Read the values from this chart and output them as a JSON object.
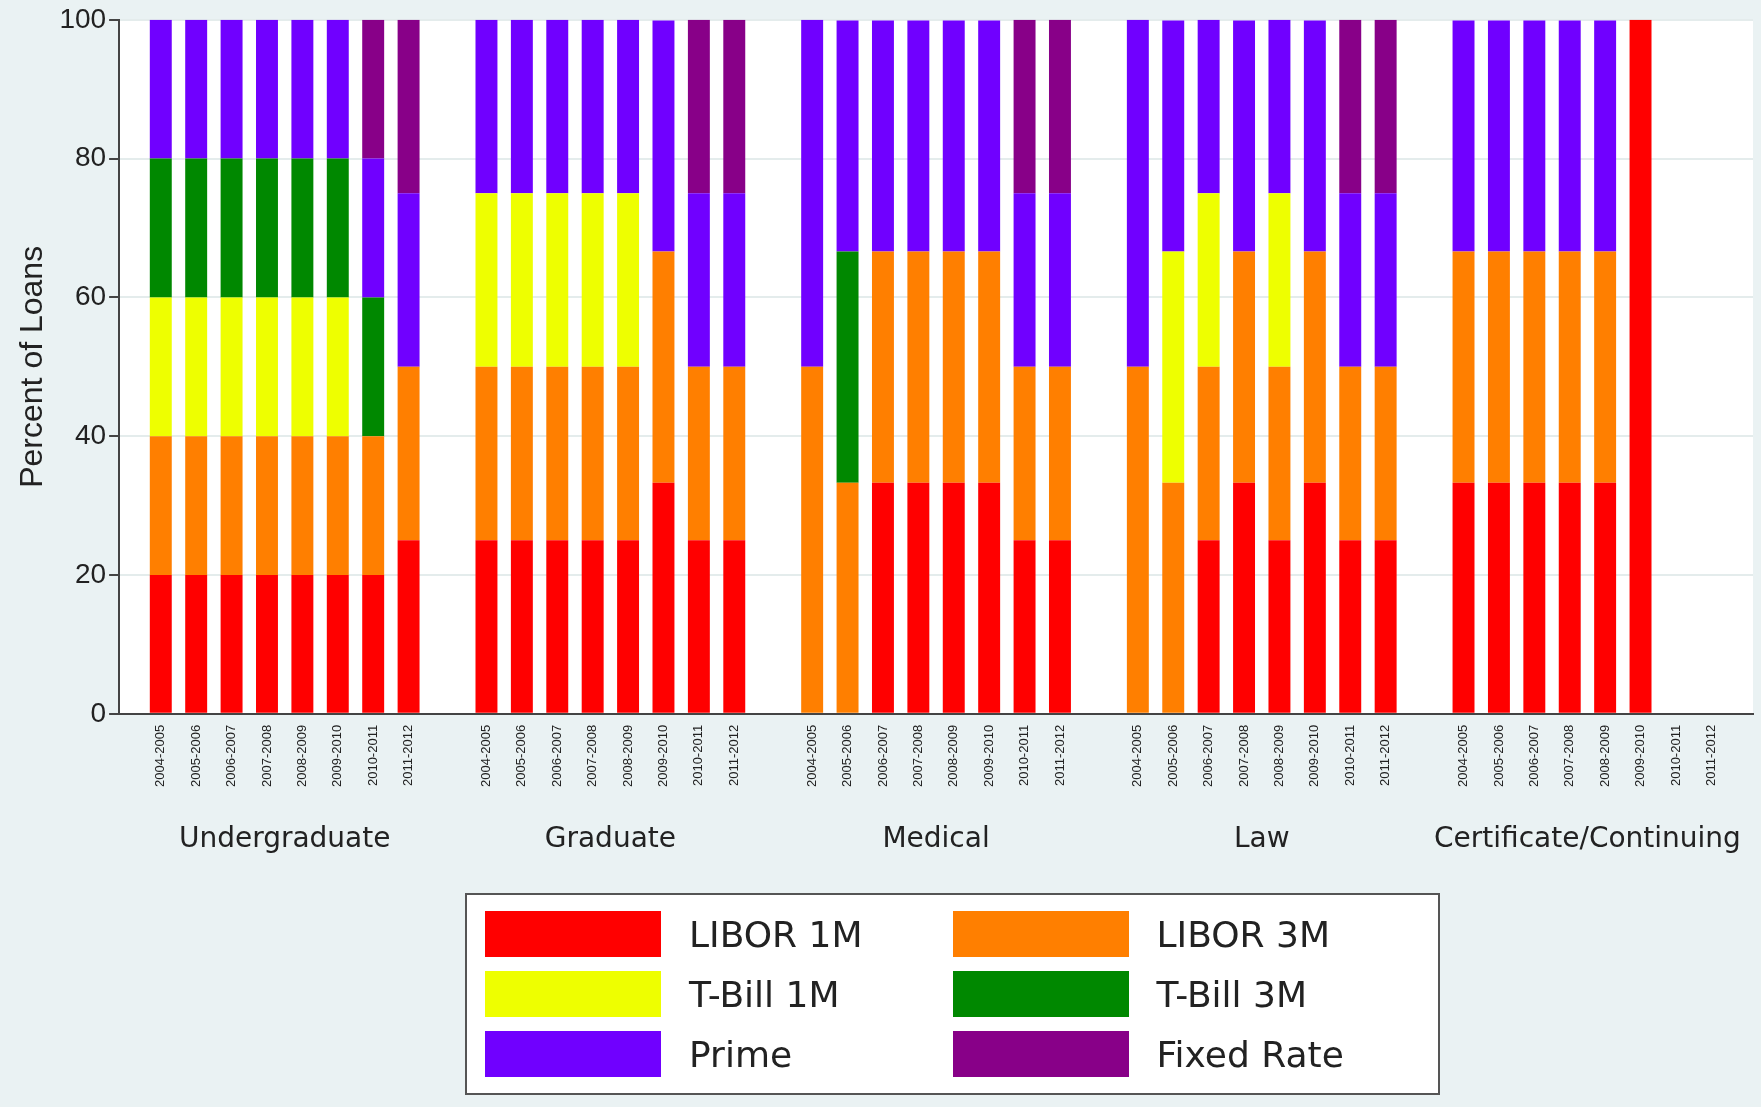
{
  "chart_data": {
    "type": "bar",
    "stacked": true,
    "ylabel": "Percent of Loans",
    "categories": [
      "2004-2005",
      "2005-2006",
      "2006-2007",
      "2007-2008",
      "2008-2009",
      "2009-2010",
      "2010-2011",
      "2011-2012",
      "2004-2005",
      "2005-2006",
      "2006-2007",
      "2007-2008",
      "2008-2009",
      "2009-2010",
      "2010-2011",
      "2011-2012",
      "2004-2005",
      "2005-2006",
      "2006-2007",
      "2007-2008",
      "2008-2009",
      "2009-2010",
      "2010-2011",
      "2011-2012",
      "2004-2005",
      "2005-2006",
      "2006-2007",
      "2007-2008",
      "2008-2009",
      "2009-2010",
      "2010-2011",
      "2011-2012",
      "2004-2005",
      "2005-2006",
      "2006-2007",
      "2007-2008",
      "2008-2009",
      "2009-2010",
      "2010-2011",
      "2011-2012"
    ],
    "annotations": [
      "Undergraduate",
      "Graduate",
      "Medical",
      "Law",
      "Certificate/Continuing"
    ],
    "series": [
      {
        "name": "LIBOR 1M",
        "color": "#ff0000",
        "values": [
          20,
          20,
          20,
          20,
          20,
          20,
          20,
          25,
          25,
          25,
          25,
          25,
          25,
          33.3,
          25,
          25,
          0,
          0,
          33.3,
          33.3,
          33.3,
          33.3,
          25,
          25,
          0,
          0,
          25,
          33.3,
          25,
          33.3,
          25,
          25,
          33.3,
          33.3,
          33.3,
          33.3,
          33.3,
          100,
          null,
          null
        ]
      },
      {
        "name": "LIBOR 3M",
        "color": "#ff7f00",
        "values": [
          20,
          20,
          20,
          20,
          20,
          20,
          20,
          25,
          25,
          25,
          25,
          25,
          25,
          33.3,
          25,
          25,
          50,
          33.3,
          33.3,
          33.3,
          33.3,
          33.3,
          25,
          25,
          50,
          33.3,
          25,
          33.3,
          25,
          33.3,
          25,
          25,
          33.3,
          33.3,
          33.3,
          33.3,
          33.3,
          0,
          null,
          null
        ]
      },
      {
        "name": "T-Bill 1M",
        "color": "#eeff00",
        "values": [
          20,
          20,
          20,
          20,
          20,
          20,
          0,
          0,
          25,
          25,
          25,
          25,
          25,
          0,
          0,
          0,
          0,
          0,
          0,
          0,
          0,
          0,
          0,
          0,
          0,
          33.3,
          25,
          0,
          25,
          0,
          0,
          0,
          0,
          0,
          0,
          0,
          0,
          0,
          null,
          null
        ]
      },
      {
        "name": "T-Bill 3M",
        "color": "#008800",
        "values": [
          20,
          20,
          20,
          20,
          20,
          20,
          20,
          0,
          0,
          0,
          0,
          0,
          0,
          0,
          0,
          0,
          0,
          33.3,
          0,
          0,
          0,
          0,
          0,
          0,
          0,
          0,
          0,
          0,
          0,
          0,
          0,
          0,
          0,
          0,
          0,
          0,
          0,
          0,
          null,
          null
        ]
      },
      {
        "name": "Prime",
        "color": "#7000ff",
        "values": [
          20,
          20,
          20,
          20,
          20,
          20,
          20,
          25,
          25,
          25,
          25,
          25,
          25,
          33.3,
          25,
          25,
          50,
          33.3,
          33.3,
          33.3,
          33.3,
          33.3,
          25,
          25,
          50,
          33.3,
          25,
          33.3,
          25,
          33.3,
          25,
          25,
          33.3,
          33.3,
          33.3,
          33.3,
          33.3,
          0,
          null,
          null
        ]
      },
      {
        "name": "Fixed Rate",
        "color": "#880088",
        "values": [
          0,
          0,
          0,
          0,
          0,
          0,
          20,
          25,
          0,
          0,
          0,
          0,
          0,
          0,
          25,
          25,
          0,
          0,
          0,
          0,
          0,
          0,
          25,
          25,
          0,
          0,
          0,
          0,
          0,
          0,
          25,
          25,
          0,
          0,
          0,
          0,
          0,
          0,
          null,
          null
        ]
      }
    ],
    "ylim": [
      0,
      100
    ],
    "yticks": [
      0,
      20,
      40,
      60,
      80,
      100
    ],
    "grid": "y",
    "legend": "bottom"
  }
}
